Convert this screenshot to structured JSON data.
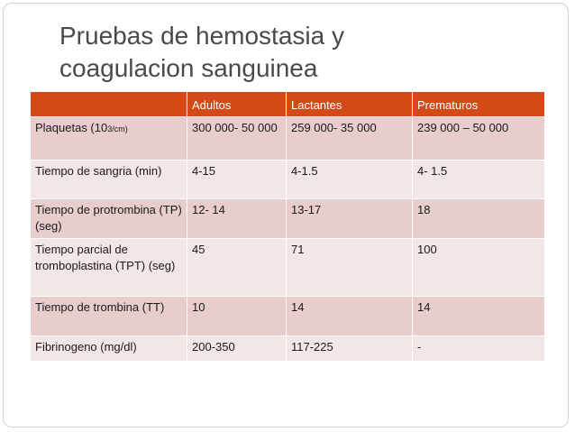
{
  "slide": {
    "title_line1": "Pruebas de hemostasia y",
    "title_line2": "coagulacion sanguinea"
  },
  "colors": {
    "header_bg": "#d34a16",
    "row_dark": "#e8cdcd",
    "row_light": "#f3e6e6",
    "title_text": "#4a4a4a"
  },
  "table": {
    "headers": [
      "",
      "Adultos",
      "Lactantes",
      "Prematuros"
    ],
    "rows": [
      {
        "label_main": "Plaquetas (10",
        "label_small": "3/cm)",
        "adultos": "300 000- 50 000",
        "lactantes": "259 000- 35 000",
        "prematuros": "239 000 – 50 000"
      },
      {
        "label": "Tiempo de sangria (min)",
        "adultos": "4-15",
        "lactantes": "4-1.5",
        "prematuros": "4- 1.5"
      },
      {
        "label": "Tiempo de protrombina (TP) (seg)",
        "adultos": "12- 14",
        "lactantes": "13-17",
        "prematuros": "18"
      },
      {
        "label": "Tiempo parcial de tromboplastina (TPT) (seg)",
        "adultos": "45",
        "lactantes": "71",
        "prematuros": "100"
      },
      {
        "label": "Tiempo de trombina (TT)",
        "adultos": "10",
        "lactantes": "14",
        "prematuros": "14"
      },
      {
        "label": "Fibrinogeno (mg/dl)",
        "adultos": "200-350",
        "lactantes": "117-225",
        "prematuros": "-"
      }
    ]
  }
}
